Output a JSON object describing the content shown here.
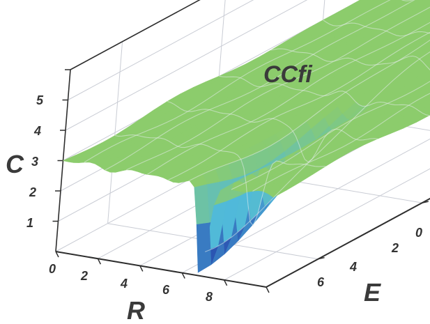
{
  "chart_data": {
    "type": "surface",
    "title": "CCfi",
    "xlabel": "R",
    "ylabel": "E",
    "zlabel": "C",
    "x_ticks": [
      "0",
      "2",
      "4",
      "6",
      "8"
    ],
    "y_ticks": [
      "0",
      "2",
      "4",
      "6"
    ],
    "z_ticks": [
      "1",
      "2",
      "3",
      "4",
      "5"
    ],
    "xlim": [
      0,
      10
    ],
    "ylim": [
      0,
      7
    ],
    "zlim": [
      0,
      6
    ],
    "grid": true,
    "baseline_level": 3,
    "valley": {
      "r": 6.8,
      "e": 7,
      "min_c": 0
    },
    "ridge_peak": {
      "r": 6.5,
      "e": 1.5,
      "c": 3.7
    },
    "colors": {
      "high": "#8ccc6c",
      "mid": "#4fb9dc",
      "low": "#1c2aa0",
      "grid": "#c9ccd4",
      "mesh": "#e6ecec"
    }
  }
}
